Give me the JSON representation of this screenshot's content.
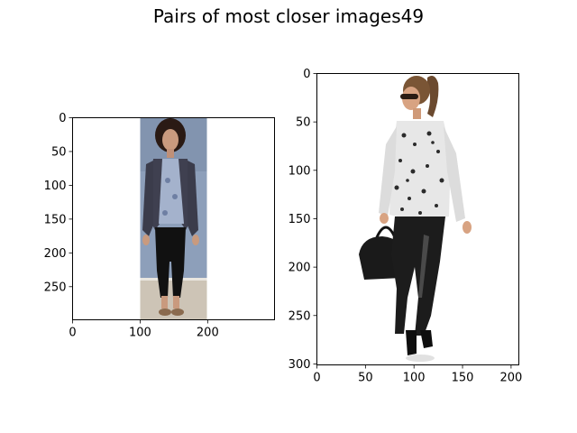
{
  "figure": {
    "title": "Pairs of most closer images49"
  },
  "chart_data": [
    {
      "type": "image",
      "subject": "woman-in-dark-cardigan-blue-floral-top-black-leggings-sandals",
      "xlim": [
        0,
        299
      ],
      "ylim": [
        299,
        0
      ],
      "xticks": [
        0,
        100,
        200
      ],
      "yticks": [
        0,
        50,
        100,
        150,
        200,
        250
      ],
      "content_x_range": [
        100,
        197
      ],
      "grid": false
    },
    {
      "type": "image",
      "subject": "woman-in-sunglasses-leopard-print-blouse-black-leather-pants-handbag",
      "xlim": [
        0,
        208
      ],
      "ylim": [
        301,
        0
      ],
      "xticks": [
        0,
        50,
        100,
        150,
        200
      ],
      "yticks": [
        0,
        50,
        100,
        150,
        200,
        250,
        300
      ],
      "grid": false
    }
  ],
  "colors": {
    "backdrop_left": "#8fa0bb",
    "floor_left": "#cfc6b8",
    "cardigan": "#3f4050",
    "floral_top": "#a4b2cc",
    "leggings": "#111111",
    "skin": "#c99a7e",
    "hair": "#2a1a14",
    "blouse_print": "#e8e8e8",
    "leather": "#1c1c1c"
  }
}
